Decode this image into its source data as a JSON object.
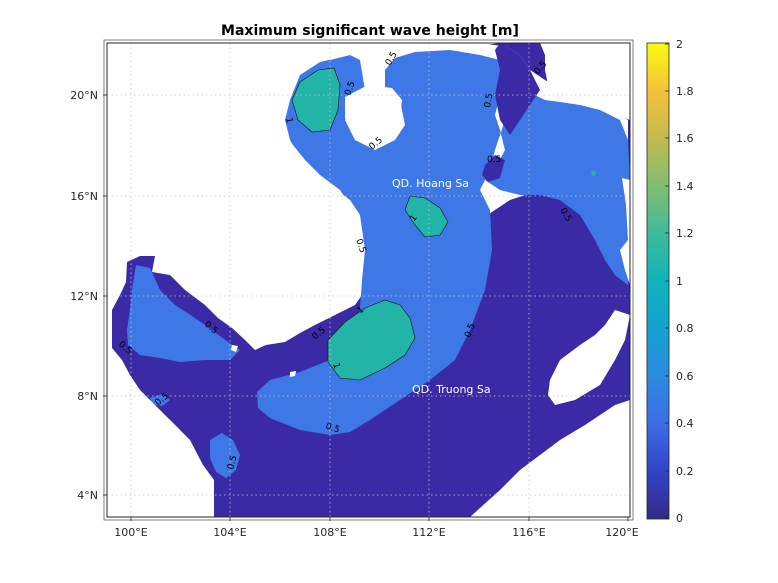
{
  "title": "Maximum significant wave height [m]",
  "x_ticks": [
    "100°E",
    "104°E",
    "108°E",
    "112°E",
    "116°E",
    "120°E"
  ],
  "y_ticks": [
    "4°N",
    "8°N",
    "12°N",
    "16°N",
    "20°N"
  ],
  "colorbar": {
    "ticks": [
      "0",
      "0.2",
      "0.4",
      "0.6",
      "0.8",
      "1",
      "1.2",
      "1.4",
      "1.6",
      "1.8",
      "2"
    ],
    "range": [
      0,
      2
    ],
    "colormap": "parula"
  },
  "places": {
    "paracel": "QD. Hoang Sa",
    "spratly": "QD. Truong Sa"
  },
  "contour_labels": {
    "c05": "0.5",
    "c1": "1"
  },
  "colors": {
    "wave_low": "#3a2aa5",
    "wave_mid": "#3d78e6",
    "wave_high": "#23b4a8",
    "land": "#ffffff",
    "grid": "#c8c8c8"
  }
}
